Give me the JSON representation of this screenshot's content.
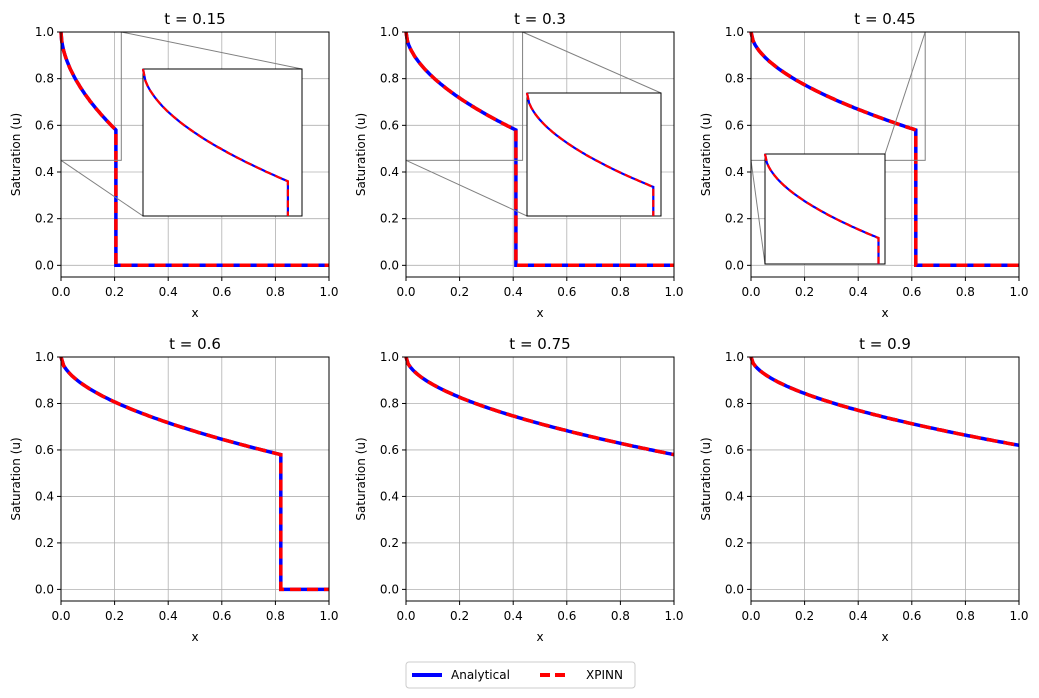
{
  "chart_data": {
    "type": "line",
    "layout": "2x3 subplots",
    "x_label": "x",
    "y_label": "Saturation (u)",
    "x_ticks": [
      "0.0",
      "0.2",
      "0.4",
      "0.6",
      "0.8",
      "1.0"
    ],
    "y_ticks": [
      "0.0",
      "0.2",
      "0.4",
      "0.6",
      "0.8",
      "1.0"
    ],
    "xlim": [
      0,
      1
    ],
    "ylim": [
      -0.05,
      1.0
    ],
    "grid": true,
    "legend": {
      "placement": "bottom-center",
      "entries": [
        {
          "name": "Analytical",
          "color": "#0000ff",
          "style": "solid"
        },
        {
          "name": "XPINN",
          "color": "#ff0000",
          "style": "dashed"
        }
      ]
    },
    "subplots": [
      {
        "title": "t = 0.15",
        "shock_x": 0.205,
        "inset": true
      },
      {
        "title": "t = 0.3",
        "shock_x": 0.41,
        "inset": true
      },
      {
        "title": "t = 0.45",
        "shock_x": 0.615,
        "inset": true
      },
      {
        "title": "t = 0.6",
        "shock_x": 0.82,
        "inset": false
      },
      {
        "title": "t = 0.75",
        "shock_x": null,
        "inset": false
      },
      {
        "title": "t = 0.9",
        "shock_x": null,
        "inset": false
      }
    ],
    "series_note": "Rarefaction profile u decreasing from 1.0 to ~0.58 at the shock front, then dropping to 0.0; for t >= 0.75 the front has exited the domain.",
    "series": [
      {
        "name": "Analytical",
        "subplot": 0,
        "x": [
          0,
          0.01,
          0.03,
          0.06,
          0.1,
          0.15,
          0.205,
          0.205,
          1.0
        ],
        "y": [
          1.0,
          0.94,
          0.87,
          0.79,
          0.71,
          0.64,
          0.58,
          0.0,
          0.0
        ]
      },
      {
        "name": "Analytical",
        "subplot": 1,
        "x": [
          0,
          0.02,
          0.06,
          0.12,
          0.2,
          0.3,
          0.41,
          0.41,
          1.0
        ],
        "y": [
          1.0,
          0.94,
          0.87,
          0.79,
          0.71,
          0.64,
          0.58,
          0.0,
          0.0
        ]
      },
      {
        "name": "Analytical",
        "subplot": 2,
        "x": [
          0,
          0.03,
          0.09,
          0.18,
          0.3,
          0.45,
          0.615,
          0.615,
          1.0
        ],
        "y": [
          1.0,
          0.94,
          0.87,
          0.79,
          0.71,
          0.64,
          0.58,
          0.0,
          0.0
        ]
      },
      {
        "name": "Analytical",
        "subplot": 3,
        "x": [
          0,
          0.04,
          0.12,
          0.24,
          0.4,
          0.6,
          0.82,
          0.82,
          1.0
        ],
        "y": [
          1.0,
          0.94,
          0.87,
          0.79,
          0.71,
          0.64,
          0.58,
          0.0,
          0.0
        ]
      },
      {
        "name": "Analytical",
        "subplot": 4,
        "x": [
          0,
          0.05,
          0.15,
          0.3,
          0.5,
          0.75,
          1.0
        ],
        "y": [
          1.0,
          0.95,
          0.89,
          0.81,
          0.74,
          0.66,
          0.58
        ]
      },
      {
        "name": "Analytical",
        "subplot": 5,
        "x": [
          0,
          0.06,
          0.18,
          0.36,
          0.6,
          0.9,
          1.0
        ],
        "y": [
          1.0,
          0.95,
          0.89,
          0.81,
          0.74,
          0.66,
          0.62
        ]
      }
    ]
  }
}
